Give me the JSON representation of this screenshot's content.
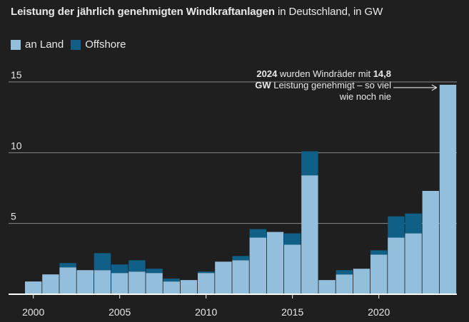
{
  "title_bold": "Leistung der jährlich genehmigten Windkraftanlagen",
  "title_rest": " in Deutschland, in GW",
  "colors": {
    "land": "#93bfdc",
    "offshore": "#0f5f86",
    "background": "#1f1f1f",
    "text": "#e8e8e8",
    "grid": "#8a8a8a"
  },
  "legend": {
    "land": "an Land",
    "offshore": "Offshore"
  },
  "annotation": {
    "line1_bold": "2024",
    "line1_rest": " wurden Windräder mit ",
    "line1_bold2": "14,8",
    "line2_bold": "GW",
    "line2_rest": " Leistung genehmigt – so viel",
    "line3": "wie noch nie"
  },
  "chart_data": {
    "type": "bar",
    "stacked": true,
    "x": [
      2000,
      2001,
      2002,
      2003,
      2004,
      2005,
      2006,
      2007,
      2008,
      2009,
      2010,
      2011,
      2012,
      2013,
      2014,
      2015,
      2016,
      2017,
      2018,
      2019,
      2020,
      2021,
      2022,
      2023,
      2024
    ],
    "series": [
      {
        "name": "an Land",
        "values": [
          0.9,
          1.4,
          1.9,
          1.7,
          1.7,
          1.5,
          1.6,
          1.5,
          0.9,
          1.0,
          1.5,
          2.3,
          2.4,
          4.0,
          4.4,
          3.5,
          8.4,
          1.0,
          1.4,
          1.8,
          2.8,
          4.0,
          4.3,
          7.3,
          14.8
        ]
      },
      {
        "name": "Offshore",
        "values": [
          0,
          0,
          0.3,
          0,
          1.2,
          0.6,
          0.8,
          0.3,
          0.2,
          0,
          0.1,
          0,
          0.3,
          0.6,
          0,
          0.8,
          1.7,
          0,
          0.3,
          0,
          0.3,
          1.5,
          1.4,
          0,
          0
        ]
      }
    ],
    "ylim": [
      0,
      15
    ],
    "yticks": [
      5,
      10,
      15
    ],
    "xticks": [
      2000,
      2005,
      2010,
      2015,
      2020
    ],
    "grid": true
  }
}
